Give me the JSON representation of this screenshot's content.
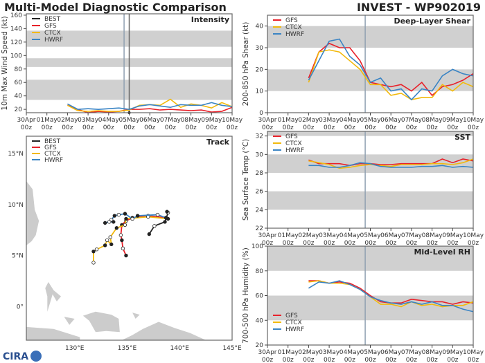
{
  "header": {
    "left_title": "Multi-Model Diagnostic Comparison",
    "right_title": "INVEST - WP902019",
    "logo": "CIRA"
  },
  "colors": {
    "BEST": "#222222",
    "GFS": "#e8212a",
    "CTCX": "#f2b90c",
    "HWRF": "#3a84c4",
    "band": "#d0d0d0",
    "marker_line": "#8fa0b0"
  },
  "time_ticks": [
    "30Apr",
    "01May",
    "02May",
    "03May",
    "04May",
    "05May",
    "06May",
    "07May",
    "08May",
    "09May",
    "10May"
  ],
  "time_tick_suffix": "00z",
  "chart_data": [
    {
      "id": "intensity",
      "type": "line",
      "title": "Intensity",
      "ylabel": "10m Max Wind Speed (kt)",
      "ylim": [
        15,
        162
      ],
      "yticks": [
        20,
        40,
        60,
        80,
        100,
        120,
        140,
        160
      ],
      "bands": [
        [
          34,
          64
        ],
        [
          83,
          96
        ],
        [
          113,
          137
        ]
      ],
      "xlim": [
        "30Apr 00z",
        "10May 00z"
      ],
      "vlines": [
        "04May 18z",
        "05May 00z"
      ],
      "legend": "top-left",
      "times": [
        "02May 00z",
        "02May 12z",
        "03May 00z",
        "03May 12z",
        "04May 00z",
        "04May 12z",
        "05May 00z",
        "05May 12z",
        "06May 00z",
        "06May 12z",
        "07May 00z",
        "07May 12z",
        "08May 00z",
        "08May 12z",
        "09May 00z",
        "09May 12z",
        "10May 00z"
      ],
      "series": [
        {
          "name": "BEST",
          "values": [
            null,
            null,
            null,
            null,
            null,
            null,
            15,
            null,
            null,
            null,
            null,
            null,
            null,
            null,
            null,
            null,
            null
          ]
        },
        {
          "name": "GFS",
          "values": [
            26,
            20,
            15,
            17,
            16,
            17,
            20,
            20,
            21,
            19,
            20,
            19,
            18,
            19,
            16,
            17,
            23
          ]
        },
        {
          "name": "CTCX",
          "values": [
            26,
            18,
            17,
            18,
            17,
            17,
            19,
            26,
            27,
            26,
            35,
            23,
            28,
            26,
            22,
            30,
            24
          ]
        },
        {
          "name": "HWRF",
          "values": [
            28,
            20,
            21,
            20,
            21,
            22,
            20,
            25,
            27,
            25,
            23,
            27,
            26,
            26,
            30,
            26,
            24
          ]
        }
      ]
    },
    {
      "id": "shear",
      "type": "line",
      "title": "Deep-Layer Shear",
      "ylabel": "200-850 hPa Shear (kt)",
      "ylim": [
        0,
        45
      ],
      "yticks": [
        0,
        10,
        20,
        30,
        40
      ],
      "bands": [
        [
          10,
          20
        ],
        [
          30,
          40
        ]
      ],
      "xlim": [
        "30Apr 00z",
        "10May 00z"
      ],
      "vlines": [
        "04May 18z"
      ],
      "legend": "top-left",
      "times": [
        "02May 00z",
        "02May 12z",
        "03May 00z",
        "03May 12z",
        "04May 00z",
        "04May 12z",
        "05May 00z",
        "05May 12z",
        "06May 00z",
        "06May 12z",
        "07May 00z",
        "07May 12z",
        "08May 00z",
        "08May 12z",
        "09May 00z",
        "09May 12z",
        "10May 00z"
      ],
      "series": [
        {
          "name": "GFS",
          "values": [
            16,
            28,
            32,
            30,
            30,
            24,
            14,
            13,
            12,
            13,
            10,
            14,
            8,
            12,
            13,
            15,
            18
          ]
        },
        {
          "name": "CTCX",
          "values": [
            14,
            28,
            29,
            28,
            24,
            20,
            13,
            13,
            8,
            9,
            6,
            7,
            7,
            13,
            10,
            14,
            12
          ]
        },
        {
          "name": "HWRF",
          "values": [
            15,
            24,
            33,
            34,
            26,
            22,
            14,
            16,
            10,
            11,
            6,
            11,
            10,
            17,
            20,
            18,
            17
          ]
        }
      ]
    },
    {
      "id": "sst",
      "type": "line",
      "title": "SST",
      "ylabel": "Sea Surface Temp (°C)",
      "ylim": [
        22,
        32.5
      ],
      "yticks": [
        22,
        24,
        26,
        28,
        30,
        32
      ],
      "bands": [
        [
          24,
          26
        ],
        [
          28,
          30
        ],
        [
          32,
          33
        ]
      ],
      "xlim": [
        "30Apr 00z",
        "10May 00z"
      ],
      "vlines": [
        "04May 18z"
      ],
      "legend": "top-left",
      "times": [
        "02May 00z",
        "02May 12z",
        "03May 00z",
        "03May 12z",
        "04May 00z",
        "04May 12z",
        "05May 00z",
        "05May 12z",
        "06May 00z",
        "06May 12z",
        "07May 00z",
        "07May 12z",
        "08May 00z",
        "08May 12z",
        "09May 00z",
        "09May 12z",
        "10May 00z"
      ],
      "series": [
        {
          "name": "GFS",
          "values": [
            29.4,
            29.0,
            29.0,
            29.0,
            28.8,
            29.0,
            29.0,
            28.9,
            28.9,
            29.0,
            29.0,
            29.0,
            29.0,
            29.5,
            29.1,
            29.5,
            29.3
          ]
        },
        {
          "name": "CTCX",
          "values": [
            29.3,
            29.1,
            28.9,
            28.5,
            28.6,
            28.8,
            28.9,
            28.8,
            28.7,
            28.9,
            28.9,
            28.9,
            29.0,
            29.0,
            28.9,
            29.1,
            29.5
          ]
        },
        {
          "name": "HWRF",
          "values": [
            28.8,
            28.8,
            28.6,
            28.6,
            28.8,
            29.1,
            29.0,
            28.7,
            28.6,
            28.6,
            28.6,
            28.7,
            28.7,
            28.8,
            28.6,
            28.7,
            28.6
          ]
        }
      ]
    },
    {
      "id": "rh",
      "type": "line",
      "title": "Mid-Level RH",
      "ylabel": "700-500 hPa Humidity (%)",
      "ylim": [
        20,
        100
      ],
      "yticks": [
        20,
        40,
        60,
        80,
        100
      ],
      "bands": [
        [
          40,
          60
        ],
        [
          80,
          100
        ]
      ],
      "xlim": [
        "30Apr 00z",
        "10May 00z"
      ],
      "vlines": [
        "04May 18z"
      ],
      "legend": "bottom-left",
      "times": [
        "02May 00z",
        "02May 12z",
        "03May 00z",
        "03May 12z",
        "04May 00z",
        "04May 12z",
        "05May 00z",
        "05May 12z",
        "06May 00z",
        "06May 12z",
        "07May 00z",
        "07May 12z",
        "08May 00z",
        "08May 12z",
        "09May 00z",
        "09May 12z",
        "10May 00z"
      ],
      "series": [
        {
          "name": "GFS",
          "values": [
            72,
            72,
            70,
            71,
            70,
            66,
            60,
            55,
            54,
            54,
            57,
            56,
            55,
            55,
            53,
            55,
            54
          ]
        },
        {
          "name": "CTCX",
          "values": [
            71,
            72,
            70,
            70,
            69,
            65,
            59,
            53,
            53,
            51,
            55,
            52,
            53,
            51,
            52,
            52,
            55
          ]
        },
        {
          "name": "HWRF",
          "values": [
            66,
            71,
            70,
            72,
            69,
            65,
            59,
            56,
            54,
            53,
            55,
            53,
            55,
            52,
            52,
            49,
            47
          ]
        }
      ]
    },
    {
      "id": "track",
      "type": "scatter",
      "title": "Track",
      "legend": "top-left",
      "xticks": [
        "130°E",
        "135°E",
        "140°E",
        "145°E"
      ],
      "yticks": [
        "0°",
        "5°N",
        "10°N",
        "15°N"
      ],
      "lon_range": [
        125.4,
        145
      ],
      "lat_range": [
        -3.3,
        16.7
      ],
      "series": [
        {
          "name": "BEST",
          "lon": [
            137.1,
            137.6,
            138.6,
            138.9,
            138.8
          ],
          "lat": [
            7.1,
            7.9,
            8.3,
            9.2,
            9.3
          ]
        },
        {
          "name": "GFS",
          "lon": [
            138.7,
            137.0,
            135.5,
            134.9,
            134.5,
            134.4,
            134.5,
            134.6,
            134.9
          ],
          "lat": [
            8.7,
            8.9,
            8.7,
            8.4,
            8.0,
            7.0,
            6.5,
            5.7,
            5.0
          ]
        },
        {
          "name": "CTCX",
          "lon": [
            138.9,
            137.0,
            134.9,
            134.8,
            134.0,
            133.4,
            133.5,
            133.1,
            132.9,
            132.1,
            131.8,
            131.8
          ],
          "lat": [
            8.6,
            8.8,
            8.6,
            8.0,
            7.7,
            6.8,
            6.1,
            6.5,
            6.0,
            5.6,
            5.4,
            4.3
          ]
        },
        {
          "name": "HWRF",
          "lon": [
            138.7,
            137.9,
            136.0,
            135.5,
            134.8,
            134.2,
            133.8,
            133.5,
            133.7,
            133.3,
            132.9
          ],
          "lat": [
            8.7,
            9.0,
            8.9,
            8.6,
            9.1,
            9.0,
            8.9,
            8.5,
            8.3,
            8.3,
            8.2
          ]
        }
      ]
    }
  ]
}
